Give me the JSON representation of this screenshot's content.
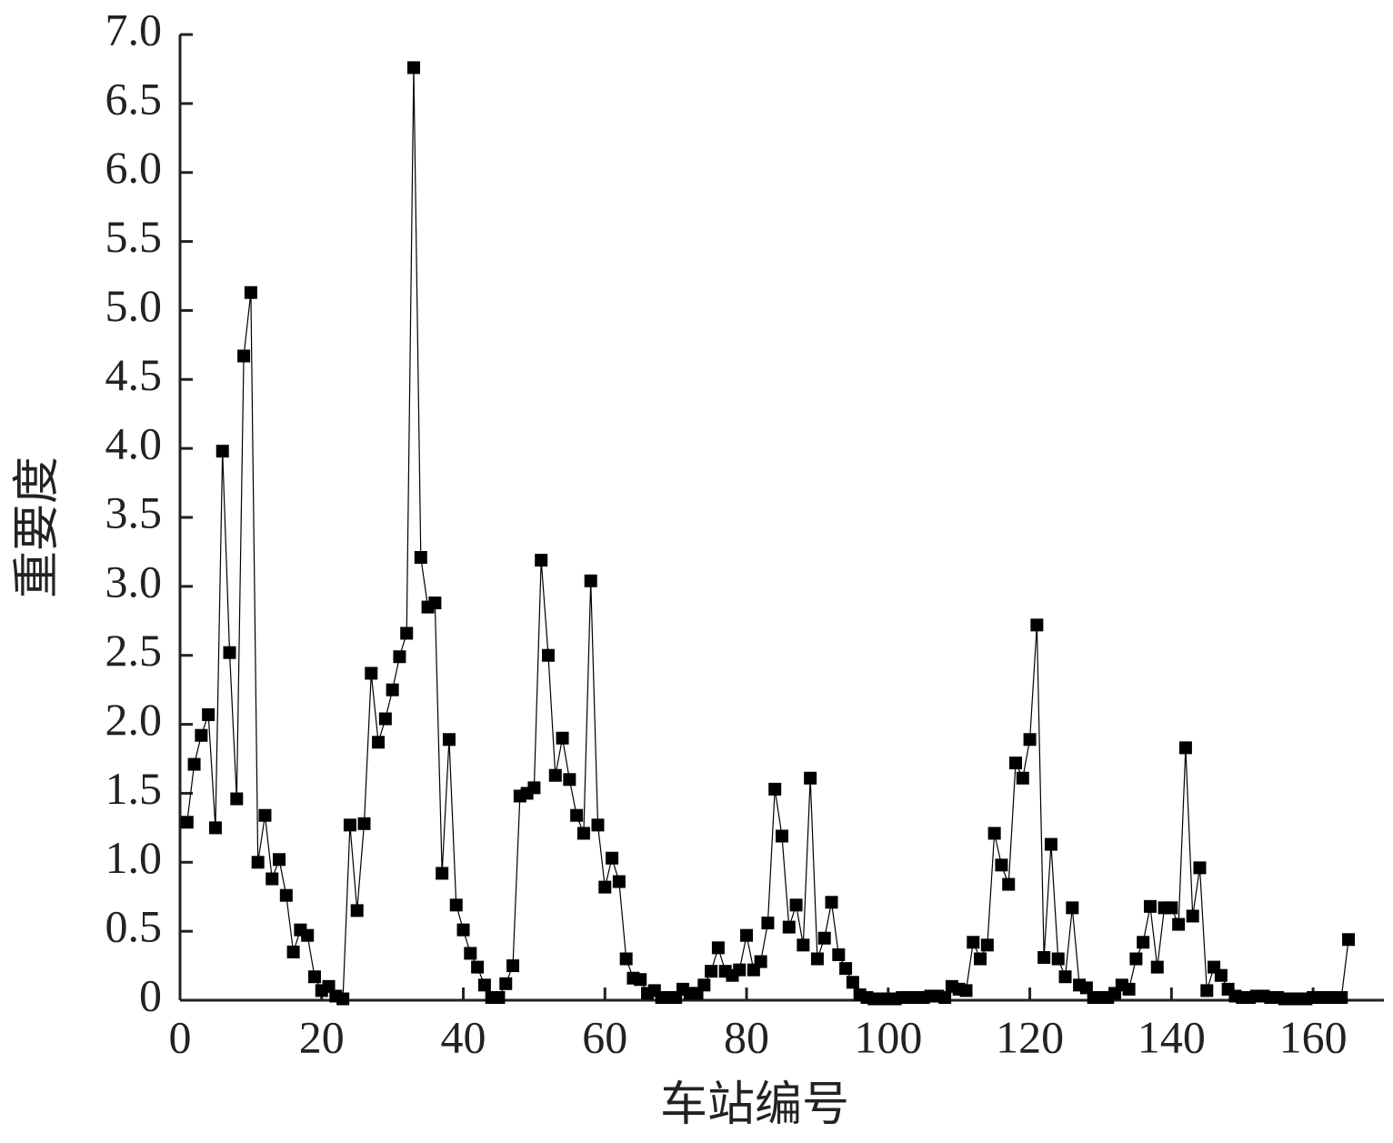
{
  "chart_data": {
    "type": "line",
    "xlabel": "车站编号",
    "ylabel": "重要度",
    "marker": "square",
    "color": "#000000",
    "xlim": [
      0,
      170
    ],
    "ylim": [
      0,
      7
    ],
    "xticks": [
      0,
      20,
      40,
      60,
      80,
      100,
      120,
      140,
      160
    ],
    "yticks": [
      0,
      0.5,
      {
        "value": 1,
        "label": "1.0"
      },
      1.5,
      {
        "value": 2,
        "label": "2.0"
      },
      2.5,
      {
        "value": 3,
        "label": "3.0"
      },
      3.5,
      {
        "value": 4,
        "label": "4.0"
      },
      4.5,
      {
        "value": 5,
        "label": "5.0"
      },
      5.5,
      {
        "value": 6,
        "label": "6.0"
      },
      6.5,
      {
        "value": 7,
        "label": "7.0"
      }
    ],
    "x": [
      1,
      2,
      3,
      4,
      5,
      6,
      7,
      8,
      9,
      10,
      11,
      12,
      13,
      14,
      15,
      16,
      17,
      18,
      19,
      20,
      21,
      22,
      23,
      24,
      25,
      26,
      27,
      28,
      29,
      30,
      31,
      32,
      33,
      34,
      35,
      36,
      37,
      38,
      39,
      40,
      41,
      42,
      43,
      44,
      45,
      46,
      47,
      48,
      49,
      50,
      51,
      52,
      53,
      54,
      55,
      56,
      57,
      58,
      59,
      60,
      61,
      62,
      63,
      64,
      65,
      66,
      67,
      68,
      69,
      70,
      71,
      72,
      73,
      74,
      75,
      76,
      77,
      78,
      79,
      80,
      81,
      82,
      83,
      84,
      85,
      86,
      87,
      88,
      89,
      90,
      91,
      92,
      93,
      94,
      95,
      96,
      97,
      98,
      99,
      100,
      101,
      102,
      103,
      104,
      105,
      106,
      107,
      108,
      109,
      110,
      111,
      112,
      113,
      114,
      115,
      116,
      117,
      118,
      119,
      120,
      121,
      122,
      123,
      124,
      125,
      126,
      127,
      128,
      129,
      130,
      131,
      132,
      133,
      134,
      135,
      136,
      137,
      138,
      139,
      140,
      141,
      142,
      143,
      144,
      145,
      146,
      147,
      148,
      149,
      150,
      151,
      152,
      153,
      154,
      155,
      156,
      157,
      158,
      159,
      160,
      161,
      162,
      163,
      164,
      165
    ],
    "values": [
      1.29,
      1.71,
      1.92,
      2.07,
      1.25,
      3.98,
      2.52,
      1.46,
      4.67,
      5.13,
      1.0,
      1.34,
      0.88,
      1.02,
      0.76,
      0.35,
      0.51,
      0.47,
      0.17,
      0.07,
      0.1,
      0.03,
      0.01,
      1.27,
      0.65,
      1.28,
      2.37,
      1.87,
      2.04,
      2.25,
      2.49,
      2.66,
      6.76,
      3.21,
      2.85,
      2.88,
      0.92,
      1.89,
      0.69,
      0.51,
      0.34,
      0.24,
      0.11,
      0.02,
      0.02,
      0.12,
      0.25,
      1.48,
      1.5,
      1.54,
      3.19,
      2.5,
      1.63,
      1.9,
      1.6,
      1.34,
      1.21,
      3.04,
      1.27,
      0.82,
      1.03,
      0.86,
      0.3,
      0.16,
      0.15,
      0.05,
      0.07,
      0.02,
      0.02,
      0.02,
      0.08,
      0.05,
      0.05,
      0.11,
      0.21,
      0.38,
      0.21,
      0.18,
      0.22,
      0.47,
      0.22,
      0.28,
      0.56,
      1.53,
      1.19,
      0.53,
      0.69,
      0.4,
      1.61,
      0.3,
      0.45,
      0.71,
      0.33,
      0.23,
      0.13,
      0.04,
      0.02,
      0.01,
      0.01,
      0.01,
      0.01,
      0.02,
      0.02,
      0.02,
      0.02,
      0.03,
      0.03,
      0.02,
      0.1,
      0.08,
      0.07,
      0.42,
      0.3,
      0.4,
      1.21,
      0.98,
      0.84,
      1.72,
      1.61,
      1.89,
      2.72,
      0.31,
      1.13,
      0.3,
      0.17,
      0.67,
      0.11,
      0.09,
      0.02,
      0.02,
      0.02,
      0.05,
      0.11,
      0.08,
      0.3,
      0.42,
      0.68,
      0.24,
      0.67,
      0.67,
      0.55,
      1.83,
      0.61,
      0.96,
      0.07,
      0.24,
      0.18,
      0.08,
      0.03,
      0.02,
      0.02,
      0.03,
      0.03,
      0.02,
      0.02,
      0.01,
      0.01,
      0.01,
      0.01,
      0.02,
      0.02,
      0.02,
      0.02,
      0.02,
      0.44
    ]
  }
}
